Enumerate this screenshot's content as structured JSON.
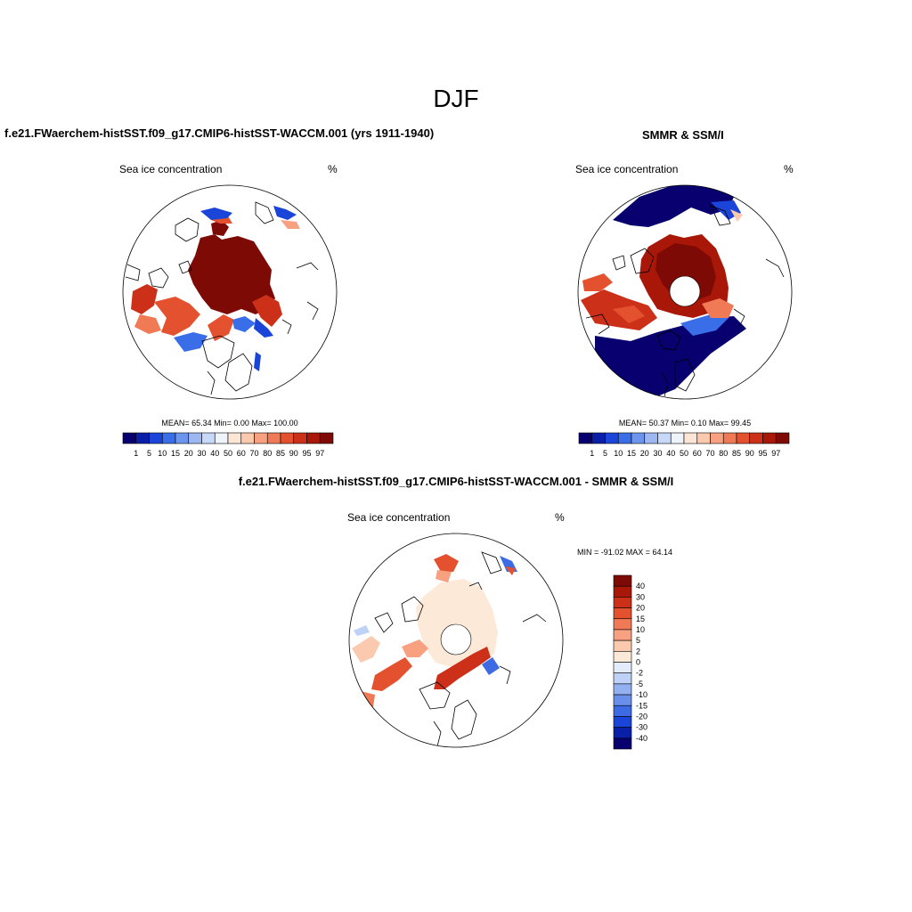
{
  "figure": {
    "title": "DJF"
  },
  "panels": [
    {
      "title": "f.e21.FWaerchem-histSST.f09_g17.CMIP6-histSST-WACCM.001 (yrs 1911-1940)",
      "left_label": "Sea ice concentration",
      "right_label": "%",
      "stats": "MEAN=  65.34  Min=   0.00  Max= 100.00"
    },
    {
      "title": "SMMR & SSM/I",
      "left_label": "Sea ice concentration",
      "right_label": "%",
      "stats": "MEAN=  50.37  Min=   0.10  Max=  99.45"
    },
    {
      "title": "f.e21.FWaerchem-histSST.f09_g17.CMIP6-histSST-WACCM.001 - SMMR & SSM/I",
      "left_label": "Sea ice concentration",
      "right_label": "%",
      "stats": "MIN = -91.02 MAX =  64.14"
    }
  ],
  "colorbars": {
    "concentration": {
      "labels": [
        "1",
        "5",
        "10",
        "15",
        "20",
        "30",
        "40",
        "50",
        "60",
        "70",
        "80",
        "85",
        "90",
        "95",
        "97"
      ],
      "colors": [
        "#08006e",
        "#0a1fa8",
        "#1a45d8",
        "#3a6ee8",
        "#6d95ee",
        "#9db7f3",
        "#c7d8f8",
        "#eef3fc",
        "#fde6d6",
        "#fbc9ae",
        "#f7a180",
        "#f07a55",
        "#e4512e",
        "#cc3018",
        "#a81708",
        "#7d0a04"
      ]
    },
    "difference": {
      "labels": [
        "40",
        "30",
        "20",
        "15",
        "10",
        "5",
        "2",
        "0",
        "-2",
        "-5",
        "-10",
        "-15",
        "-20",
        "-30",
        "-40"
      ],
      "colors": [
        "#7d0a04",
        "#a81708",
        "#cc3018",
        "#e4512e",
        "#f07a55",
        "#f7a180",
        "#fbc9ae",
        "#fde9d8",
        "#e3ecfa",
        "#bed1f6",
        "#93b0f1",
        "#6a8feb",
        "#3c6be4",
        "#1a45d8",
        "#0a1fa8",
        "#08006e"
      ]
    }
  }
}
